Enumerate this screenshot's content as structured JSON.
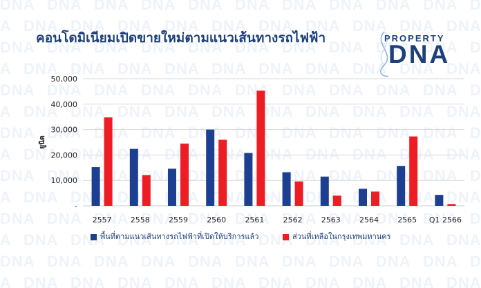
{
  "title": "คอนโดมิเนียมเปิดขายใหม่ตามแนวเส้นทางรถไฟฟ้า",
  "logo": {
    "top": "PROPERTY",
    "main": "DNA"
  },
  "watermark_text": "DNA",
  "colors": {
    "series1": "#1d3f91",
    "series2": "#ee1c23",
    "title": "#1d3f7a",
    "grid": "#d9d9d9",
    "axis_text": "#222222"
  },
  "chart_data": {
    "type": "bar",
    "title": "คอนโดมิเนียมเปิดขายใหม่ตามแนวเส้นทางรถไฟฟ้า",
    "xlabel": "",
    "ylabel": "ยูนิต",
    "ylim": [
      0,
      50000
    ],
    "yticks": [
      0,
      10000,
      20000,
      30000,
      40000,
      50000
    ],
    "ytick_labels": [
      "-",
      "10,000",
      "20,000",
      "30,000",
      "40,000",
      "50,000"
    ],
    "grid": true,
    "legend_position": "bottom",
    "categories": [
      "2557",
      "2558",
      "2559",
      "2560",
      "2561",
      "2562",
      "2563",
      "2564",
      "2565",
      "Q1 2566"
    ],
    "series": [
      {
        "name": "พื้นที่ตามแนวเส้นทางรถไฟฟ้าที่เปิดให้บริการแล้ว",
        "values": [
          15200,
          22400,
          14600,
          30000,
          20800,
          13200,
          11500,
          6700,
          15700,
          4300
        ]
      },
      {
        "name": "ส่วนที่เหลือในกรุงเทพมหานคร",
        "values": [
          34800,
          12100,
          24500,
          26000,
          45300,
          9600,
          4000,
          5600,
          27300,
          700
        ]
      }
    ]
  }
}
